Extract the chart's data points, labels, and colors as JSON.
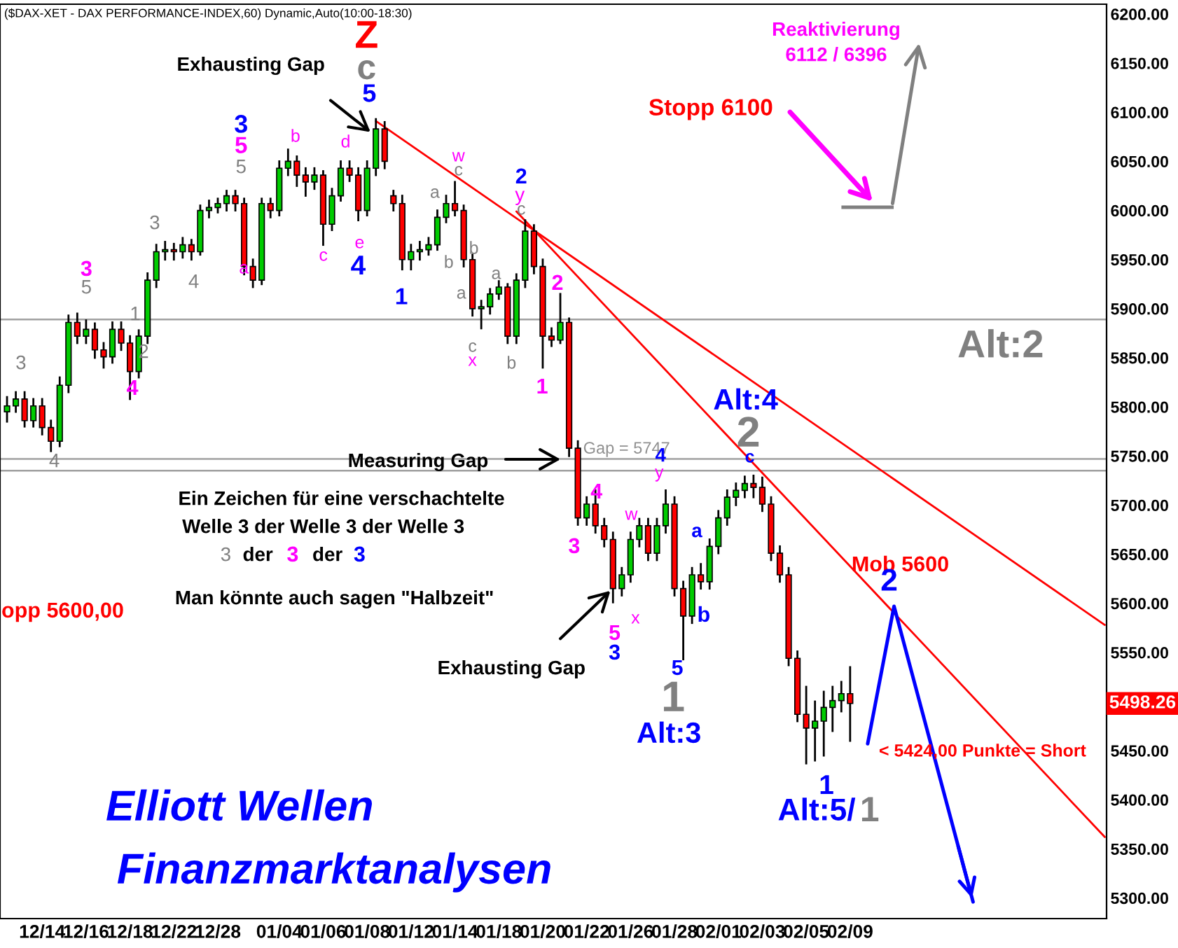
{
  "chart_data": {
    "type": "candlestick",
    "title": "($DAX-XET - DAX PERFORMANCE-INDEX,60) Dynamic,Auto(10:00-18:30)",
    "categories": [
      null,
      null,
      null,
      null,
      "12/14",
      null,
      null,
      null,
      null,
      "12/16",
      null,
      null,
      null,
      null,
      "12/18",
      null,
      null,
      null,
      null,
      "12/22",
      null,
      null,
      null,
      null,
      "12/28",
      null,
      null,
      null,
      null,
      null,
      null,
      "01/04",
      null,
      null,
      null,
      null,
      "01/06",
      null,
      null,
      null,
      null,
      "01/08",
      null,
      null,
      null,
      null,
      "01/12",
      null,
      null,
      null,
      null,
      "01/14",
      null,
      null,
      null,
      null,
      "01/18",
      null,
      null,
      null,
      null,
      "01/20",
      null,
      null,
      null,
      null,
      "01/22",
      null,
      null,
      null,
      null,
      "01/26",
      null,
      null,
      null,
      null,
      "01/28",
      null,
      null,
      null,
      null,
      "02/01",
      null,
      null,
      null,
      null,
      "02/03",
      null,
      null,
      null,
      null,
      "02/05",
      null,
      null,
      null,
      null,
      "02/09",
      null,
      null,
      null,
      null,
      null,
      null,
      null,
      null,
      null,
      null,
      null,
      null,
      null,
      null,
      null,
      null,
      null,
      null,
      null,
      null,
      null,
      null,
      null,
      null,
      null,
      null,
      null,
      null,
      null
    ],
    "ohlc": [
      [
        5795,
        5810,
        5785,
        5801
      ],
      [
        5801,
        5815,
        5795,
        5808
      ],
      [
        5808,
        5815,
        5780,
        5786
      ],
      [
        5786,
        5808,
        5780,
        5801
      ],
      [
        5801,
        5808,
        5772,
        5779
      ],
      [
        5779,
        5786,
        5755,
        5765
      ],
      [
        5765,
        5830,
        5760,
        5822
      ],
      [
        5822,
        5893,
        5815,
        5886
      ],
      [
        5886,
        5895,
        5865,
        5872
      ],
      [
        5872,
        5888,
        5865,
        5879
      ],
      [
        5879,
        5885,
        5850,
        5858
      ],
      [
        5858,
        5865,
        5840,
        5851
      ],
      [
        5851,
        5886,
        5845,
        5879
      ],
      [
        5879,
        5886,
        5858,
        5865
      ],
      [
        5865,
        5872,
        5808,
        5836
      ],
      [
        5836,
        5878,
        5830,
        5872
      ],
      [
        5872,
        5936,
        5865,
        5929
      ],
      [
        5929,
        5965,
        5922,
        5958
      ],
      [
        5958,
        5968,
        5950,
        5960
      ],
      [
        5960,
        5966,
        5950,
        5958
      ],
      [
        5958,
        5972,
        5952,
        5965
      ],
      [
        5965,
        5970,
        5950,
        5958
      ],
      [
        5958,
        6005,
        5955,
        6000
      ],
      [
        6000,
        6010,
        5993,
        6003
      ],
      [
        6003,
        6012,
        5998,
        6007
      ],
      [
        6007,
        6020,
        6000,
        6015
      ],
      [
        6015,
        6020,
        6000,
        6007
      ],
      [
        6007,
        6012,
        5935,
        5943
      ],
      [
        5943,
        5950,
        5922,
        5929
      ],
      [
        5929,
        6012,
        5925,
        6007
      ],
      [
        6007,
        6012,
        5993,
        6000
      ],
      [
        6000,
        6050,
        5995,
        6043
      ],
      [
        6043,
        6062,
        6036,
        6050
      ],
      [
        6050,
        6055,
        6025,
        6036
      ],
      [
        6036,
        6043,
        6015,
        6029
      ],
      [
        6029,
        6043,
        6022,
        6036
      ],
      [
        6036,
        6040,
        5965,
        5986
      ],
      [
        5986,
        6022,
        5980,
        6015
      ],
      [
        6015,
        6050,
        6010,
        6043
      ],
      [
        6043,
        6050,
        6030,
        6036
      ],
      [
        6036,
        6043,
        5990,
        6000
      ],
      [
        6000,
        6050,
        5995,
        6043
      ],
      [
        6043,
        6093,
        6036,
        6083
      ],
      [
        6083,
        6090,
        6043,
        6050
      ],
      [
        6015,
        6020,
        6000,
        6007
      ],
      [
        6007,
        6015,
        5940,
        5950
      ],
      [
        5950,
        5965,
        5940,
        5958
      ],
      [
        5958,
        5968,
        5950,
        5960
      ],
      [
        5960,
        5972,
        5955,
        5965
      ],
      [
        5965,
        6000,
        5960,
        5993
      ],
      [
        5993,
        6015,
        5988,
        6007
      ],
      [
        6007,
        6029,
        5995,
        6000
      ],
      [
        6000,
        6005,
        5943,
        5950
      ],
      [
        5950,
        5955,
        5893,
        5900
      ],
      [
        5900,
        5908,
        5880,
        5902
      ],
      [
        5902,
        5920,
        5895,
        5915
      ],
      [
        5915,
        5928,
        5910,
        5922
      ],
      [
        5922,
        5925,
        5865,
        5872
      ],
      [
        5872,
        5935,
        5865,
        5929
      ],
      [
        5929,
        5990,
        5922,
        5979
      ],
      [
        5979,
        5985,
        5936,
        5943
      ],
      [
        5943,
        5950,
        5840,
        5872
      ],
      [
        5872,
        5880,
        5862,
        5868
      ],
      [
        5868,
        5915,
        5865,
        5886
      ],
      [
        5886,
        5890,
        5750,
        5758
      ],
      [
        5758,
        5765,
        5680,
        5687
      ],
      [
        5687,
        5708,
        5680,
        5701
      ],
      [
        5701,
        5715,
        5672,
        5679
      ],
      [
        5679,
        5686,
        5658,
        5665
      ],
      [
        5665,
        5672,
        5601,
        5615
      ],
      [
        5615,
        5636,
        5608,
        5629
      ],
      [
        5629,
        5672,
        5622,
        5665
      ],
      [
        5665,
        5686,
        5658,
        5679
      ],
      [
        5679,
        5686,
        5644,
        5651
      ],
      [
        5651,
        5686,
        5644,
        5679
      ],
      [
        5679,
        5715,
        5672,
        5701
      ],
      [
        5701,
        5708,
        5608,
        5615
      ],
      [
        5615,
        5622,
        5543,
        5587
      ],
      [
        5587,
        5636,
        5580,
        5629
      ],
      [
        5629,
        5640,
        5615,
        5622
      ],
      [
        5622,
        5665,
        5615,
        5658
      ],
      [
        5658,
        5694,
        5651,
        5687
      ],
      [
        5687,
        5715,
        5680,
        5708
      ],
      [
        5708,
        5722,
        5700,
        5715
      ],
      [
        5715,
        5729,
        5708,
        5722
      ],
      [
        5722,
        5730,
        5708,
        5718
      ],
      [
        5718,
        5728,
        5694,
        5701
      ],
      [
        5701,
        5708,
        5644,
        5651
      ],
      [
        5651,
        5658,
        5622,
        5629
      ],
      [
        5629,
        5636,
        5537,
        5544
      ],
      [
        5544,
        5551,
        5480,
        5487
      ],
      [
        5487,
        5515,
        5437,
        5473
      ],
      [
        5473,
        5500,
        5440,
        5480
      ],
      [
        5480,
        5510,
        5445,
        5494
      ],
      [
        5494,
        5515,
        5470,
        5501
      ],
      [
        5501,
        5520,
        5490,
        5508
      ],
      [
        5508,
        5535,
        5460,
        5498
      ],
      null,
      null,
      null,
      null,
      null,
      null,
      null,
      null,
      null,
      null,
      null,
      null,
      null,
      null,
      null,
      null,
      null,
      null,
      null,
      null,
      null,
      null,
      null,
      null,
      null,
      null,
      null,
      null,
      null
    ],
    "series": [
      {
        "type": "line",
        "color": "#ff0000",
        "values": [
          null,
          null,
          null,
          null,
          null,
          null,
          null,
          null,
          null,
          null,
          null,
          null,
          null,
          null,
          null,
          null,
          null,
          null,
          null,
          null,
          null,
          null,
          null,
          null,
          null,
          null,
          null,
          null,
          null,
          null,
          null,
          null,
          null,
          null,
          null,
          null,
          null,
          null,
          null,
          null,
          null,
          null,
          6091,
          null,
          null,
          null,
          null,
          null,
          null,
          null,
          null,
          null,
          null,
          null,
          null,
          null,
          null,
          null,
          null,
          null,
          null,
          null,
          null,
          null,
          null,
          null,
          null,
          null,
          null,
          null,
          null,
          null,
          null,
          null,
          null,
          null,
          null,
          null,
          null,
          null,
          null,
          null,
          null,
          null,
          null,
          null,
          null,
          null,
          null,
          null,
          null,
          null,
          null,
          null,
          null,
          null,
          null,
          null,
          null,
          null,
          null,
          null,
          null,
          null,
          null,
          null,
          null,
          null,
          null,
          null,
          null,
          null,
          null,
          null,
          null,
          null,
          null,
          null,
          null,
          null,
          null,
          null,
          null,
          null,
          null,
          5578
        ]
      },
      {
        "type": "line",
        "color": "#ff0000",
        "values": [
          null,
          null,
          null,
          null,
          null,
          null,
          null,
          null,
          null,
          null,
          null,
          null,
          null,
          null,
          null,
          null,
          null,
          null,
          null,
          null,
          null,
          null,
          null,
          null,
          null,
          null,
          null,
          null,
          null,
          null,
          null,
          null,
          null,
          null,
          null,
          null,
          null,
          null,
          null,
          null,
          null,
          null,
          null,
          null,
          null,
          null,
          null,
          null,
          null,
          null,
          null,
          null,
          null,
          null,
          null,
          null,
          null,
          null,
          5999,
          null,
          null,
          null,
          null,
          null,
          null,
          null,
          null,
          null,
          null,
          null,
          null,
          null,
          null,
          null,
          null,
          null,
          null,
          null,
          null,
          null,
          null,
          null,
          null,
          null,
          null,
          null,
          null,
          null,
          null,
          null,
          null,
          null,
          null,
          null,
          null,
          null,
          null,
          null,
          null,
          null,
          null,
          null,
          null,
          null,
          null,
          null,
          null,
          null,
          null,
          null,
          null,
          null,
          null,
          null,
          null,
          null,
          null,
          null,
          null,
          null,
          null,
          null,
          null,
          null,
          null,
          5362
        ]
      },
      {
        "type": "line",
        "color": "#0000ff",
        "values": [
          null,
          null,
          null,
          null,
          null,
          null,
          null,
          null,
          null,
          null,
          null,
          null,
          null,
          null,
          null,
          null,
          null,
          null,
          null,
          null,
          null,
          null,
          null,
          null,
          null,
          null,
          null,
          null,
          null,
          null,
          null,
          null,
          null,
          null,
          null,
          null,
          null,
          null,
          null,
          null,
          null,
          null,
          null,
          null,
          null,
          null,
          null,
          null,
          null,
          null,
          null,
          null,
          null,
          null,
          null,
          null,
          null,
          null,
          null,
          null,
          null,
          null,
          null,
          null,
          null,
          null,
          null,
          null,
          null,
          null,
          null,
          null,
          null,
          null,
          null,
          null,
          null,
          null,
          null,
          null,
          null,
          null,
          null,
          null,
          null,
          null,
          null,
          null,
          null,
          null,
          null,
          null,
          null,
          null,
          null,
          null,
          null,
          null,
          5457,
          null,
          null,
          5597,
          null,
          null,
          null,
          null,
          null,
          null,
          null,
          null,
          5296,
          null,
          null,
          null,
          null,
          null,
          null,
          null,
          null,
          null,
          null,
          null,
          null,
          null,
          null,
          null
        ]
      }
    ],
    "ylim": [
      5279,
      6210
    ],
    "yticks": [
      {
        "value": 5300,
        "label": "5300.00"
      },
      {
        "value": 5350,
        "label": "5350.00"
      },
      {
        "value": 5400,
        "label": "5400.00"
      },
      {
        "value": 5450,
        "label": "5450.00"
      },
      {
        "value": 5550,
        "label": "5550.00"
      },
      {
        "value": 5600,
        "label": "5600.00"
      },
      {
        "value": 5650,
        "label": "5650.00"
      },
      {
        "value": 5700,
        "label": "5700.00"
      },
      {
        "value": 5750,
        "label": "5750.00"
      },
      {
        "value": 5800,
        "label": "5800.00"
      },
      {
        "value": 5850,
        "label": "5850.00"
      },
      {
        "value": 5900,
        "label": "5900.00"
      },
      {
        "value": 5950,
        "label": "5950.00"
      },
      {
        "value": 6000,
        "label": "6000.00"
      },
      {
        "value": 6050,
        "label": "6050.00"
      },
      {
        "value": 6100,
        "label": "6100.00"
      },
      {
        "value": 6150,
        "label": "6150.00"
      },
      {
        "value": 6200,
        "label": "6200.00"
      }
    ],
    "ref_lines": [
      {
        "axis": "y",
        "value": 5889,
        "color": "#a0a0a0"
      },
      {
        "axis": "y",
        "value": 5747,
        "label": "Gap = 5747",
        "color": "#a0a0a0"
      },
      {
        "axis": "y",
        "value": 5735,
        "color": "#a0a0a0"
      }
    ],
    "annotations": [
      "Z",
      "c",
      "5",
      "Exhausting Gap",
      "Reaktivierung",
      "6112 / 6396",
      "Stopp 6100",
      "3",
      "5",
      "5",
      "b",
      "d",
      "a",
      "c",
      "e",
      "4",
      "1",
      "3",
      "4",
      "3",
      "5",
      "1",
      "2",
      "4",
      "3",
      "4",
      "w",
      "c",
      "a",
      "b",
      "b",
      "a",
      "a",
      "2",
      "y",
      "c",
      "c",
      "x",
      "b",
      "2",
      "1",
      "Alt:2",
      "Alt:4",
      "2",
      "Measuring Gap",
      "4",
      "y",
      "c",
      "Ein Zeichen für eine verschachtelte",
      "Welle 3 der Welle 3 der Welle 3",
      "3",
      "der",
      "3",
      "der",
      "3",
      "4",
      "3",
      "w",
      "a",
      "b",
      "x",
      "Man könnte auch sagen \"Halbzeit\"",
      "5",
      "3",
      "5",
      "Exhausting Gap",
      "1",
      "Alt:3",
      "Mob 5600",
      "2",
      "< 5424,00 Punkte = Short",
      "1",
      "Alt:5/",
      "1",
      "Elliott Wellen",
      "Finanzmarktanalysen",
      "opp 5600,00",
      "5498.26"
    ],
    "grid": false,
    "legend": false
  }
}
